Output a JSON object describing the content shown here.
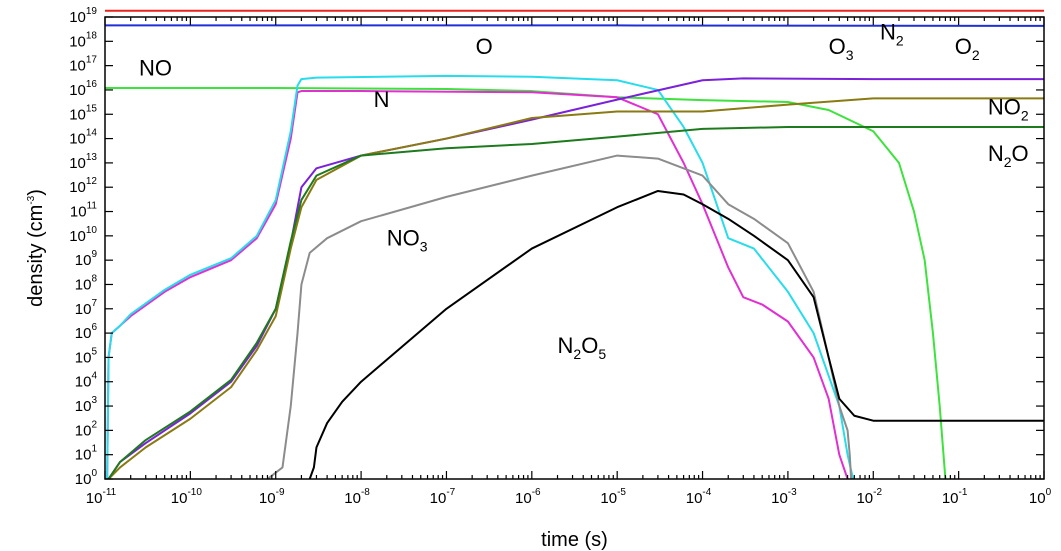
{
  "chart_data": {
    "type": "line",
    "xlabel": "time (s)",
    "ylabel_base": "density (cm",
    "ylabel_sup": "-3",
    "ylabel_close": ")",
    "x_scale": "log",
    "y_scale": "log",
    "xlim": [
      1e-11,
      1
    ],
    "ylim": [
      1,
      1e+19
    ],
    "x_ticks": [
      {
        "base": "10",
        "exp": "-11",
        "value": 1e-11
      },
      {
        "base": "10",
        "exp": "-10",
        "value": 1e-10
      },
      {
        "base": "10",
        "exp": "-9",
        "value": 1e-09
      },
      {
        "base": "10",
        "exp": "-8",
        "value": 1e-08
      },
      {
        "base": "10",
        "exp": "-7",
        "value": 1e-07
      },
      {
        "base": "10",
        "exp": "-6",
        "value": 1e-06
      },
      {
        "base": "10",
        "exp": "-5",
        "value": 1e-05
      },
      {
        "base": "10",
        "exp": "-4",
        "value": 0.0001
      },
      {
        "base": "10",
        "exp": "-3",
        "value": 0.001
      },
      {
        "base": "10",
        "exp": "-2",
        "value": 0.01
      },
      {
        "base": "10",
        "exp": "-1",
        "value": 0.1
      },
      {
        "base": "10",
        "exp": "0",
        "value": 1
      }
    ],
    "y_ticks": [
      {
        "base": "10",
        "exp": "0",
        "value": 1
      },
      {
        "base": "10",
        "exp": "1",
        "value": 10.0
      },
      {
        "base": "10",
        "exp": "2",
        "value": 100.0
      },
      {
        "base": "10",
        "exp": "3",
        "value": 1000.0
      },
      {
        "base": "10",
        "exp": "4",
        "value": 10000.0
      },
      {
        "base": "10",
        "exp": "5",
        "value": 100000.0
      },
      {
        "base": "10",
        "exp": "6",
        "value": 1000000.0
      },
      {
        "base": "10",
        "exp": "7",
        "value": 10000000.0
      },
      {
        "base": "10",
        "exp": "8",
        "value": 100000000.0
      },
      {
        "base": "10",
        "exp": "9",
        "value": 1000000000.0
      },
      {
        "base": "10",
        "exp": "10",
        "value": 10000000000.0
      },
      {
        "base": "10",
        "exp": "11",
        "value": 100000000000.0
      },
      {
        "base": "10",
        "exp": "12",
        "value": 1000000000000.0
      },
      {
        "base": "10",
        "exp": "13",
        "value": 10000000000000.0
      },
      {
        "base": "10",
        "exp": "14",
        "value": 100000000000000.0
      },
      {
        "base": "10",
        "exp": "15",
        "value": 1000000000000000.0
      },
      {
        "base": "10",
        "exp": "16",
        "value": 1e+16
      },
      {
        "base": "10",
        "exp": "17",
        "value": 1e+17
      },
      {
        "base": "10",
        "exp": "18",
        "value": 1e+18
      },
      {
        "base": "10",
        "exp": "19",
        "value": 1e+19
      }
    ],
    "series": [
      {
        "id": "n2",
        "color": "#e8231e",
        "points": [
          [
            1e-11,
            1.8e+19
          ],
          [
            1,
            1.8e+19
          ]
        ]
      },
      {
        "id": "o2",
        "color": "#1f2fd6",
        "points": [
          [
            1e-11,
            4.5e+18
          ],
          [
            1e-05,
            4.5e+18
          ],
          [
            1,
            4.3e+18
          ]
        ]
      },
      {
        "id": "no",
        "color": "#3de23d",
        "points": [
          [
            1e-11,
            1.2e+16
          ],
          [
            1e-09,
            1.2e+16
          ],
          [
            1e-07,
            1.1e+16
          ],
          [
            1e-06,
            9000000000000000.0
          ],
          [
            1e-05,
            5000000000000000.0
          ],
          [
            0.0001,
            3800000000000000.0
          ],
          [
            0.001,
            3200000000000000.0
          ],
          [
            0.003,
            1500000000000000.0
          ],
          [
            0.01,
            200000000000000.0
          ],
          [
            0.02,
            10000000000000.0
          ],
          [
            0.03,
            100000000000.0
          ],
          [
            0.04,
            1000000000.0
          ],
          [
            0.05,
            1000000.0
          ],
          [
            0.06,
            1000.0
          ],
          [
            0.07,
            1
          ]
        ]
      },
      {
        "id": "n",
        "color": "#e22fd2",
        "points": [
          [
            1.06e-11,
            1
          ],
          [
            1.1e-11,
            100000.0
          ],
          [
            1.2e-11,
            1000000.0
          ],
          [
            1.5e-11,
            2000000.0
          ],
          [
            2e-11,
            5000000.0
          ],
          [
            5e-11,
            50000000.0
          ],
          [
            1e-10,
            200000000.0
          ],
          [
            3e-10,
            1000000000.0
          ],
          [
            6e-10,
            8000000000.0
          ],
          [
            1e-09,
            200000000000.0
          ],
          [
            1.5e-09,
            100000000000000.0
          ],
          [
            1.8e-09,
            8000000000000000.0
          ],
          [
            2e-09,
            9000000000000000.0
          ],
          [
            1e-08,
            9000000000000000.0
          ],
          [
            1e-06,
            8000000000000000.0
          ],
          [
            1e-05,
            5000000000000000.0
          ],
          [
            3e-05,
            1000000000000000.0
          ],
          [
            6e-05,
            10000000000000.0
          ],
          [
            0.0001,
            200000000000.0
          ],
          [
            0.0002,
            500000000.0
          ],
          [
            0.0003,
            30000000.0
          ],
          [
            0.0005,
            15000000.0
          ],
          [
            0.001,
            3000000.0
          ],
          [
            0.002,
            100000.0
          ],
          [
            0.003,
            2000.0
          ],
          [
            0.004,
            10
          ],
          [
            0.005,
            1
          ]
        ]
      },
      {
        "id": "o",
        "color": "#27dceb",
        "points": [
          [
            1.06e-11,
            1
          ],
          [
            1.1e-11,
            100000.0
          ],
          [
            1.2e-11,
            1000000.0
          ],
          [
            1.5e-11,
            2000000.0
          ],
          [
            2e-11,
            6000000.0
          ],
          [
            5e-11,
            60000000.0
          ],
          [
            1e-10,
            250000000.0
          ],
          [
            3e-10,
            1200000000.0
          ],
          [
            6e-10,
            10000000000.0
          ],
          [
            1e-09,
            300000000000.0
          ],
          [
            1.5e-09,
            200000000000000.0
          ],
          [
            1.8e-09,
            1.5e+16
          ],
          [
            2e-09,
            2.8e+16
          ],
          [
            3e-09,
            3.2e+16
          ],
          [
            1e-07,
            3.8e+16
          ],
          [
            1e-06,
            3.5e+16
          ],
          [
            1e-05,
            2.5e+16
          ],
          [
            3e-05,
            1e+16
          ],
          [
            6e-05,
            300000000000000.0
          ],
          [
            0.0001,
            10000000000000.0
          ],
          [
            0.0002,
            8000000000.0
          ],
          [
            0.0004,
            3000000000.0
          ],
          [
            0.001,
            50000000.0
          ],
          [
            0.002,
            1000000.0
          ],
          [
            0.004,
            1000.0
          ],
          [
            0.005,
            10
          ],
          [
            0.0058,
            1
          ]
        ]
      },
      {
        "id": "o3",
        "color": "#7a21d9",
        "points": [
          [
            1.1e-11,
            1
          ],
          [
            1.5e-11,
            5
          ],
          [
            3e-11,
            30
          ],
          [
            1e-10,
            500
          ],
          [
            3e-10,
            10000.0
          ],
          [
            6e-10,
            300000.0
          ],
          [
            1e-09,
            10000000.0
          ],
          [
            1.5e-09,
            5000000000.0
          ],
          [
            2e-09,
            1000000000000.0
          ],
          [
            3e-09,
            6000000000000.0
          ],
          [
            1e-08,
            20000000000000.0
          ],
          [
            1e-07,
            100000000000000.0
          ],
          [
            1e-06,
            600000000000000.0
          ],
          [
            1e-05,
            4000000000000000.0
          ],
          [
            0.0001,
            2.5e+16
          ],
          [
            0.0003,
            3e+16
          ],
          [
            0.01,
            2.8e+16
          ],
          [
            1,
            2.8e+16
          ]
        ]
      },
      {
        "id": "no2",
        "color": "#8a7a12",
        "points": [
          [
            1.1e-11,
            1
          ],
          [
            1.5e-11,
            3
          ],
          [
            3e-11,
            20
          ],
          [
            1e-10,
            300
          ],
          [
            3e-10,
            6000.0
          ],
          [
            6e-10,
            200000.0
          ],
          [
            1e-09,
            5000000.0
          ],
          [
            1.5e-09,
            3000000000.0
          ],
          [
            2e-09,
            150000000000.0
          ],
          [
            3e-09,
            2000000000000.0
          ],
          [
            1e-08,
            20000000000000.0
          ],
          [
            1e-07,
            100000000000000.0
          ],
          [
            1e-06,
            700000000000000.0
          ],
          [
            1e-05,
            1300000000000000.0
          ],
          [
            0.0001,
            1300000000000000.0
          ],
          [
            0.001,
            2500000000000000.0
          ],
          [
            0.01,
            4500000000000000.0
          ],
          [
            1,
            4500000000000000.0
          ]
        ]
      },
      {
        "id": "n2o",
        "color": "#1d7a1d",
        "points": [
          [
            1.1e-11,
            1
          ],
          [
            1.5e-11,
            5
          ],
          [
            3e-11,
            40
          ],
          [
            1e-10,
            600
          ],
          [
            3e-10,
            12000.0
          ],
          [
            6e-10,
            400000.0
          ],
          [
            1e-09,
            10000000.0
          ],
          [
            1.5e-09,
            6000000000.0
          ],
          [
            2e-09,
            300000000000.0
          ],
          [
            3e-09,
            3000000000000.0
          ],
          [
            1e-08,
            20000000000000.0
          ],
          [
            1e-07,
            40000000000000.0
          ],
          [
            1e-06,
            60000000000000.0
          ],
          [
            1e-05,
            120000000000000.0
          ],
          [
            0.0001,
            250000000000000.0
          ],
          [
            0.001,
            300000000000000.0
          ],
          [
            1,
            300000000000000.0
          ]
        ]
      },
      {
        "id": "no3",
        "color": "#8c8c8c",
        "points": [
          [
            8e-10,
            1
          ],
          [
            1.2e-09,
            3
          ],
          [
            1.5e-09,
            1000.0
          ],
          [
            1.8e-09,
            1000000.0
          ],
          [
            2e-09,
            100000000.0
          ],
          [
            2.5e-09,
            2000000000.0
          ],
          [
            4e-09,
            8000000000.0
          ],
          [
            1e-08,
            40000000000.0
          ],
          [
            1e-07,
            400000000000.0
          ],
          [
            1e-06,
            3000000000000.0
          ],
          [
            1e-05,
            20000000000000.0
          ],
          [
            3e-05,
            15000000000000.0
          ],
          [
            0.0001,
            3000000000000.0
          ],
          [
            0.0002,
            200000000000.0
          ],
          [
            0.0004,
            50000000000.0
          ],
          [
            0.001,
            5000000000.0
          ],
          [
            0.002,
            50000000.0
          ],
          [
            0.003,
            100000.0
          ],
          [
            0.004,
            1000.0
          ],
          [
            0.005,
            100.0
          ],
          [
            0.0053,
            10
          ],
          [
            0.0055,
            1
          ]
        ]
      },
      {
        "id": "n2o5",
        "color": "#000000",
        "points": [
          [
            2.5e-09,
            1
          ],
          [
            2.8e-09,
            3
          ],
          [
            3e-09,
            20
          ],
          [
            4e-09,
            200
          ],
          [
            6e-09,
            1500.0
          ],
          [
            1e-08,
            10000.0
          ],
          [
            1e-07,
            10000000.0
          ],
          [
            1e-06,
            3000000000.0
          ],
          [
            1e-05,
            150000000000.0
          ],
          [
            3e-05,
            700000000000.0
          ],
          [
            6e-05,
            500000000000.0
          ],
          [
            0.0001,
            200000000000.0
          ],
          [
            0.0002,
            50000000000.0
          ],
          [
            0.0004,
            10000000000.0
          ],
          [
            0.001,
            1000000000.0
          ],
          [
            0.002,
            30000000.0
          ],
          [
            0.003,
            100000.0
          ],
          [
            0.004,
            2000.0
          ],
          [
            0.006,
            400.0
          ],
          [
            0.01,
            250.0
          ],
          [
            1,
            250.0
          ]
        ]
      }
    ],
    "labels": [
      {
        "id": "NO",
        "parts": [
          {
            "t": "NO",
            "s": 0
          }
        ],
        "x": 2.5e-11,
        "y": 4e+16
      },
      {
        "id": "O",
        "parts": [
          {
            "t": "O",
            "s": 0
          }
        ],
        "x": 2.2e-07,
        "y": 3e+17
      },
      {
        "id": "O3",
        "parts": [
          {
            "t": "O",
            "s": 0
          },
          {
            "t": "3",
            "s": 1
          }
        ],
        "x": 0.003,
        "y": 3e+17
      },
      {
        "id": "N2",
        "parts": [
          {
            "t": "N",
            "s": 0
          },
          {
            "t": "2",
            "s": 1
          }
        ],
        "x": 0.012,
        "y": 1.2e+18
      },
      {
        "id": "O2",
        "parts": [
          {
            "t": "O",
            "s": 0
          },
          {
            "t": "2",
            "s": 1
          }
        ],
        "x": 0.09,
        "y": 3e+17
      },
      {
        "id": "N",
        "parts": [
          {
            "t": "N",
            "s": 0
          }
        ],
        "x": 1.4e-08,
        "y": 2000000000000000.0
      },
      {
        "id": "NO2",
        "parts": [
          {
            "t": "NO",
            "s": 0
          },
          {
            "t": "2",
            "s": 1
          }
        ],
        "x": 0.22,
        "y": 1000000000000000.0
      },
      {
        "id": "N2O",
        "parts": [
          {
            "t": "N",
            "s": 0
          },
          {
            "t": "2",
            "s": 1
          },
          {
            "t": "O",
            "s": 0
          }
        ],
        "x": 0.22,
        "y": 12000000000000.0
      },
      {
        "id": "NO3",
        "parts": [
          {
            "t": "NO",
            "s": 0
          },
          {
            "t": "3",
            "s": 1
          }
        ],
        "x": 2e-08,
        "y": 4000000000.0
      },
      {
        "id": "N2O5",
        "parts": [
          {
            "t": "N",
            "s": 0
          },
          {
            "t": "2",
            "s": 1
          },
          {
            "t": "O",
            "s": 0
          },
          {
            "t": "5",
            "s": 1
          }
        ],
        "x": 2e-06,
        "y": 150000.0
      }
    ]
  }
}
